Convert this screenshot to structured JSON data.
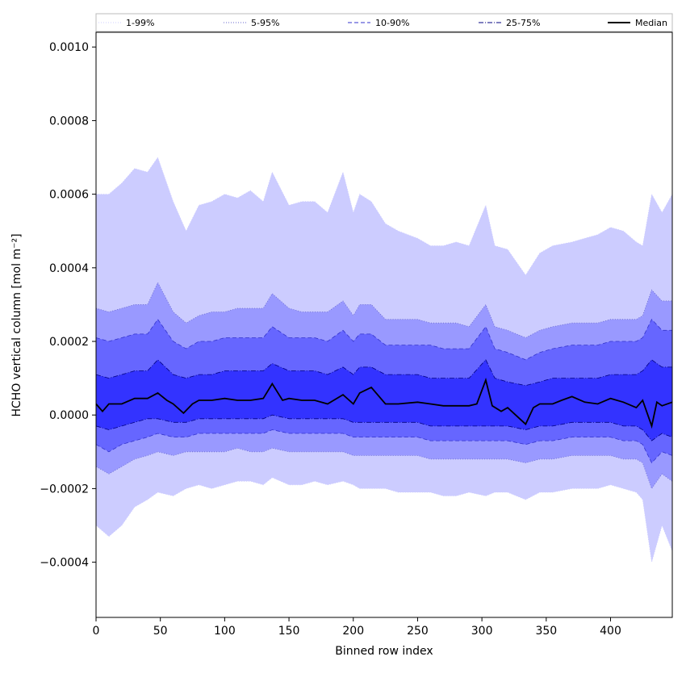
{
  "chart_data": {
    "type": "area",
    "xlabel": "Binned row index",
    "ylabel": "HCHO vertical column [mol m⁻²]",
    "xlim": [
      0,
      448
    ],
    "ylim": [
      -0.00055,
      0.00104
    ],
    "x_ticks": [
      0,
      50,
      100,
      150,
      200,
      250,
      300,
      350,
      400
    ],
    "x_tick_labels": [
      "0",
      "50",
      "100",
      "150",
      "200",
      "250",
      "300",
      "350",
      "400"
    ],
    "y_ticks": [
      -0.0004,
      -0.0002,
      0.0,
      0.0002,
      0.0004,
      0.0006,
      0.0008,
      0.001
    ],
    "y_tick_labels": [
      "−0.0004",
      "−0.0002",
      "0.0000",
      "0.0002",
      "0.0004",
      "0.0006",
      "0.0008",
      "0.0010"
    ],
    "grid": false,
    "legend_position": "top",
    "colors": {
      "band_1_99": "#ccccff",
      "band_5_95": "#9999ff",
      "band_10_90": "#6666ff",
      "band_25_75": "#3333ff",
      "line_1_99": "#ccccff",
      "line_5_95": "#6666cc",
      "line_10_90": "#3333cc",
      "line_25_75": "#000080",
      "median": "#000000"
    },
    "series": [
      {
        "name": "1-99%",
        "style": "dotted",
        "x": [
          0,
          10,
          20,
          30,
          40,
          48,
          60,
          70,
          80,
          90,
          100,
          110,
          120,
          130,
          137,
          150,
          160,
          170,
          180,
          192,
          200,
          205,
          214,
          225,
          235,
          250,
          260,
          270,
          280,
          290,
          303,
          310,
          320,
          334,
          345,
          355,
          370,
          380,
          390,
          400,
          410,
          420,
          425,
          432,
          440,
          448
        ],
        "upper": [
          0.0006,
          0.0006,
          0.00063,
          0.00067,
          0.00066,
          0.0007,
          0.00058,
          0.0005,
          0.00057,
          0.00058,
          0.0006,
          0.00059,
          0.00061,
          0.00058,
          0.00066,
          0.00057,
          0.00058,
          0.00058,
          0.00055,
          0.00066,
          0.00055,
          0.0006,
          0.00058,
          0.00052,
          0.0005,
          0.00048,
          0.00046,
          0.00046,
          0.00047,
          0.00046,
          0.00057,
          0.00046,
          0.00045,
          0.00038,
          0.00044,
          0.00046,
          0.00047,
          0.00048,
          0.00049,
          0.00051,
          0.0005,
          0.00047,
          0.00046,
          0.0006,
          0.00055,
          0.0006
        ],
        "lower": [
          -0.0003,
          -0.00033,
          -0.0003,
          -0.00025,
          -0.00023,
          -0.00021,
          -0.00022,
          -0.0002,
          -0.00019,
          -0.0002,
          -0.00019,
          -0.00018,
          -0.00018,
          -0.00019,
          -0.00017,
          -0.00019,
          -0.00019,
          -0.00018,
          -0.00019,
          -0.00018,
          -0.00019,
          -0.0002,
          -0.0002,
          -0.0002,
          -0.00021,
          -0.00021,
          -0.00021,
          -0.00022,
          -0.00022,
          -0.00021,
          -0.00022,
          -0.00021,
          -0.00021,
          -0.00023,
          -0.00021,
          -0.00021,
          -0.0002,
          -0.0002,
          -0.0002,
          -0.00019,
          -0.0002,
          -0.00021,
          -0.00023,
          -0.0004,
          -0.0003,
          -0.00037
        ]
      },
      {
        "name": "5-95%",
        "style": "dotted",
        "x": [
          0,
          10,
          20,
          30,
          40,
          48,
          60,
          70,
          80,
          90,
          100,
          110,
          120,
          130,
          137,
          150,
          160,
          170,
          180,
          192,
          200,
          205,
          214,
          225,
          235,
          250,
          260,
          270,
          280,
          290,
          303,
          310,
          320,
          334,
          345,
          355,
          370,
          380,
          390,
          400,
          410,
          420,
          425,
          432,
          440,
          448
        ],
        "upper": [
          0.00029,
          0.00028,
          0.00029,
          0.0003,
          0.0003,
          0.00036,
          0.00028,
          0.00025,
          0.00027,
          0.00028,
          0.00028,
          0.00029,
          0.00029,
          0.00029,
          0.00033,
          0.00029,
          0.00028,
          0.00028,
          0.00028,
          0.00031,
          0.00027,
          0.0003,
          0.0003,
          0.00026,
          0.00026,
          0.00026,
          0.00025,
          0.00025,
          0.00025,
          0.00024,
          0.0003,
          0.00024,
          0.00023,
          0.00021,
          0.00023,
          0.00024,
          0.00025,
          0.00025,
          0.00025,
          0.00026,
          0.00026,
          0.00026,
          0.00027,
          0.00034,
          0.00031,
          0.00031
        ],
        "lower": [
          -0.00014,
          -0.00016,
          -0.00014,
          -0.00012,
          -0.00011,
          -0.0001,
          -0.00011,
          -0.0001,
          -0.0001,
          -0.0001,
          -0.0001,
          -9e-05,
          -0.0001,
          -0.0001,
          -9e-05,
          -0.0001,
          -0.0001,
          -0.0001,
          -0.0001,
          -0.0001,
          -0.00011,
          -0.00011,
          -0.00011,
          -0.00011,
          -0.00011,
          -0.00011,
          -0.00012,
          -0.00012,
          -0.00012,
          -0.00012,
          -0.00012,
          -0.00012,
          -0.00012,
          -0.00013,
          -0.00012,
          -0.00012,
          -0.00011,
          -0.00011,
          -0.00011,
          -0.00011,
          -0.00012,
          -0.00012,
          -0.00013,
          -0.0002,
          -0.00016,
          -0.00018
        ]
      },
      {
        "name": "10-90%",
        "style": "dashed",
        "x": [
          0,
          10,
          20,
          30,
          40,
          48,
          60,
          70,
          80,
          90,
          100,
          110,
          120,
          130,
          137,
          150,
          160,
          170,
          180,
          192,
          200,
          205,
          214,
          225,
          235,
          250,
          260,
          270,
          280,
          290,
          303,
          310,
          320,
          334,
          345,
          355,
          370,
          380,
          390,
          400,
          410,
          420,
          425,
          432,
          440,
          448
        ],
        "upper": [
          0.00021,
          0.0002,
          0.00021,
          0.00022,
          0.00022,
          0.00026,
          0.0002,
          0.00018,
          0.0002,
          0.0002,
          0.00021,
          0.00021,
          0.00021,
          0.00021,
          0.00024,
          0.00021,
          0.00021,
          0.00021,
          0.0002,
          0.00023,
          0.0002,
          0.00022,
          0.00022,
          0.00019,
          0.00019,
          0.00019,
          0.00019,
          0.00018,
          0.00018,
          0.00018,
          0.00024,
          0.00018,
          0.00017,
          0.00015,
          0.00017,
          0.00018,
          0.00019,
          0.00019,
          0.00019,
          0.0002,
          0.0002,
          0.0002,
          0.00021,
          0.00026,
          0.00023,
          0.00023
        ],
        "lower": [
          -8e-05,
          -0.0001,
          -8e-05,
          -7e-05,
          -6e-05,
          -5e-05,
          -6e-05,
          -6e-05,
          -5e-05,
          -5e-05,
          -5e-05,
          -5e-05,
          -5e-05,
          -5e-05,
          -4e-05,
          -5e-05,
          -5e-05,
          -5e-05,
          -5e-05,
          -5e-05,
          -6e-05,
          -6e-05,
          -6e-05,
          -6e-05,
          -6e-05,
          -6e-05,
          -7e-05,
          -7e-05,
          -7e-05,
          -7e-05,
          -7e-05,
          -7e-05,
          -7e-05,
          -8e-05,
          -7e-05,
          -7e-05,
          -6e-05,
          -6e-05,
          -6e-05,
          -6e-05,
          -7e-05,
          -7e-05,
          -8e-05,
          -0.00013,
          -0.0001,
          -0.00011
        ]
      },
      {
        "name": "25-75%",
        "style": "dashdot",
        "x": [
          0,
          10,
          20,
          30,
          40,
          48,
          60,
          70,
          80,
          90,
          100,
          110,
          120,
          130,
          137,
          150,
          160,
          170,
          180,
          192,
          200,
          205,
          214,
          225,
          235,
          250,
          260,
          270,
          280,
          290,
          303,
          310,
          320,
          334,
          345,
          355,
          370,
          380,
          390,
          400,
          410,
          420,
          425,
          432,
          440,
          448
        ],
        "upper": [
          0.00011,
          0.0001,
          0.00011,
          0.00012,
          0.00012,
          0.00015,
          0.00011,
          0.0001,
          0.00011,
          0.00011,
          0.00012,
          0.00012,
          0.00012,
          0.00012,
          0.00014,
          0.00012,
          0.00012,
          0.00012,
          0.00011,
          0.00013,
          0.00011,
          0.00013,
          0.00013,
          0.00011,
          0.00011,
          0.00011,
          0.0001,
          0.0001,
          0.0001,
          0.0001,
          0.00015,
          0.0001,
          9e-05,
          8e-05,
          9e-05,
          0.0001,
          0.0001,
          0.0001,
          0.0001,
          0.00011,
          0.00011,
          0.00011,
          0.00012,
          0.00015,
          0.00013,
          0.00013
        ],
        "lower": [
          -3e-05,
          -4e-05,
          -3e-05,
          -2e-05,
          -1e-05,
          -1e-05,
          -2e-05,
          -2e-05,
          -1e-05,
          -1e-05,
          -1e-05,
          -1e-05,
          -1e-05,
          -1e-05,
          -0.0,
          -1e-05,
          -1e-05,
          -1e-05,
          -1e-05,
          -1e-05,
          -2e-05,
          -2e-05,
          -2e-05,
          -2e-05,
          -2e-05,
          -2e-05,
          -3e-05,
          -3e-05,
          -3e-05,
          -3e-05,
          -3e-05,
          -3e-05,
          -3e-05,
          -4e-05,
          -3e-05,
          -3e-05,
          -2e-05,
          -2e-05,
          -2e-05,
          -2e-05,
          -3e-05,
          -3e-05,
          -4e-05,
          -7e-05,
          -5e-05,
          -6e-05
        ]
      },
      {
        "name": "Median",
        "style": "solid",
        "x": [
          0,
          5,
          10,
          20,
          30,
          40,
          48,
          55,
          60,
          68,
          75,
          80,
          90,
          100,
          110,
          120,
          130,
          137,
          145,
          150,
          160,
          170,
          180,
          192,
          200,
          205,
          214,
          225,
          235,
          250,
          260,
          270,
          280,
          290,
          296,
          303,
          308,
          315,
          320,
          334,
          340,
          345,
          355,
          362,
          370,
          380,
          390,
          400,
          410,
          420,
          425,
          432,
          436,
          440,
          448
        ],
        "values": [
          3e-05,
          1e-05,
          3e-05,
          3e-05,
          4.5e-05,
          4.5e-05,
          6e-05,
          4e-05,
          3e-05,
          5e-06,
          3e-05,
          4e-05,
          4e-05,
          4.5e-05,
          4e-05,
          4e-05,
          4.5e-05,
          8.5e-05,
          4e-05,
          4.5e-05,
          4e-05,
          4e-05,
          3e-05,
          5.5e-05,
          3e-05,
          6e-05,
          7.5e-05,
          3e-05,
          3e-05,
          3.5e-05,
          3e-05,
          2.5e-05,
          2.5e-05,
          2.5e-05,
          3e-05,
          9.5e-05,
          2.5e-05,
          1e-05,
          2e-05,
          -2.5e-05,
          2e-05,
          3e-05,
          3e-05,
          4e-05,
          5e-05,
          3.5e-05,
          3e-05,
          4.5e-05,
          3.5e-05,
          2e-05,
          4e-05,
          -3e-05,
          3.5e-05,
          2.5e-05,
          3.5e-05
        ]
      }
    ]
  }
}
